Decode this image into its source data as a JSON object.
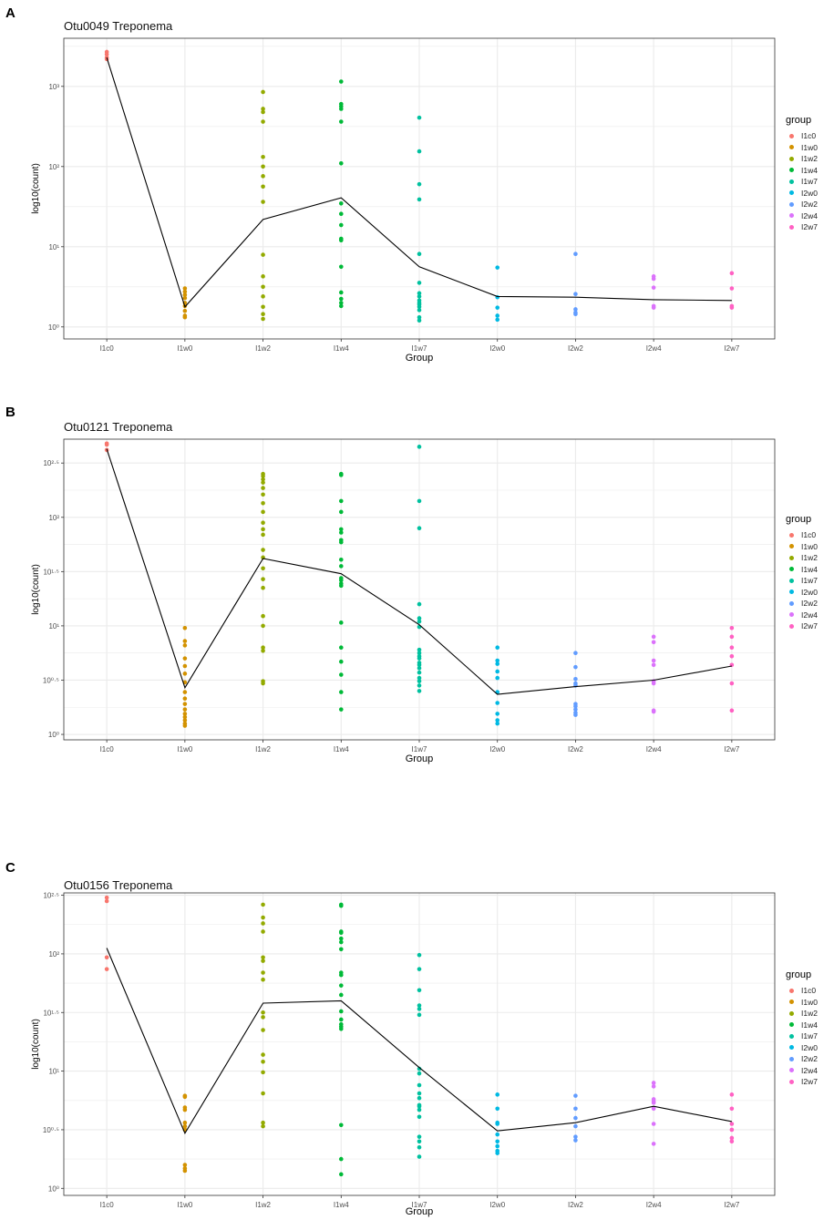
{
  "colors": {
    "I1c0": "#F8766D",
    "I1w0": "#D39200",
    "I1w2": "#93AA00",
    "I1w4": "#00BA38",
    "I1w7": "#00C19F",
    "I2w0": "#00B9E3",
    "I2w2": "#619CFF",
    "I2w4": "#DB72FB",
    "I2w7": "#FF61C3",
    "line": "#000000",
    "panel_bg": "#ffffff",
    "grid": "#ebebeb",
    "border": "#333333"
  },
  "legend": {
    "title": "group",
    "items": [
      "I1c0",
      "I1w0",
      "I1w2",
      "I1w4",
      "I1w7",
      "I2w0",
      "I2w2",
      "I2w4",
      "I2w7"
    ]
  },
  "panels": [
    {
      "letter": "A",
      "title": "Otu0049 Treponema"
    },
    {
      "letter": "B",
      "title": "Otu0121 Treponema"
    },
    {
      "letter": "C",
      "title": "Otu0156 Treponema"
    }
  ],
  "chart_data": [
    {
      "type": "scatter",
      "title": "Otu0049 Treponema",
      "xlabel": "Group",
      "ylabel": "log10(count)",
      "categories": [
        "I1c0",
        "I1w0",
        "I1w2",
        "I1w4",
        "I1w7",
        "I2w0",
        "I2w2",
        "I2w4",
        "I2w7"
      ],
      "y_log_range": [
        -0.15,
        3.6
      ],
      "yticks": [
        {
          "value": 0,
          "label": "10⁰"
        },
        {
          "value": 1,
          "label": "10¹"
        },
        {
          "value": 2,
          "label": "10²"
        },
        {
          "value": 3,
          "label": "10³"
        }
      ],
      "points": [
        [
          3.43,
          3.4,
          3.36,
          3.34
        ],
        [
          0.48,
          0.44,
          0.4,
          0.36,
          0.3,
          0.26,
          0.2,
          0.14,
          0.12
        ],
        [
          2.93,
          2.72,
          2.68,
          2.56,
          2.12,
          2.0,
          1.88,
          1.75,
          1.56,
          0.9,
          0.63,
          0.5,
          0.38,
          0.25,
          0.16,
          0.1
        ],
        [
          3.06,
          2.78,
          2.75,
          2.72,
          2.56,
          2.04,
          1.54,
          1.41,
          1.27,
          1.1,
          1.08,
          0.75,
          0.43,
          0.35,
          0.3,
          0.26
        ],
        [
          2.61,
          2.19,
          1.78,
          1.59,
          0.91,
          0.55,
          0.42,
          0.38,
          0.33,
          0.3,
          0.28,
          0.25,
          0.21,
          0.12,
          0.08
        ],
        [
          0.74,
          0.37,
          0.24,
          0.14,
          0.09
        ],
        [
          0.91,
          0.41,
          0.22,
          0.18,
          0.16
        ],
        [
          0.63,
          0.6,
          0.49,
          0.26,
          0.24
        ],
        [
          0.67,
          0.48,
          0.26,
          0.24
        ]
      ],
      "line": [
        3.36,
        0.25,
        1.34,
        1.61,
        0.75,
        0.38,
        0.37,
        0.34,
        0.33
      ]
    },
    {
      "type": "scatter",
      "title": "Otu0121 Treponema",
      "xlabel": "Group",
      "ylabel": "log10(count)",
      "categories": [
        "I1c0",
        "I1w0",
        "I1w2",
        "I1w4",
        "I1w7",
        "I2w0",
        "I2w2",
        "I2w4",
        "I2w7"
      ],
      "y_log_range": [
        -0.05,
        2.72
      ],
      "yticks": [
        {
          "value": 0,
          "label": "10⁰"
        },
        {
          "value": 0.5,
          "label": "10⁰·⁵"
        },
        {
          "value": 1,
          "label": "10¹"
        },
        {
          "value": 1.5,
          "label": "10¹·⁵"
        },
        {
          "value": 2,
          "label": "10²"
        },
        {
          "value": 2.5,
          "label": "10²·⁵"
        }
      ],
      "points": [
        [
          2.68,
          2.67,
          2.62
        ],
        [
          0.98,
          0.86,
          0.82,
          0.7,
          0.63,
          0.56,
          0.48,
          0.39,
          0.33,
          0.28,
          0.23,
          0.19,
          0.16,
          0.13,
          0.1,
          0.08
        ],
        [
          2.4,
          2.38,
          2.35,
          2.32,
          2.27,
          2.21,
          2.13,
          2.05,
          1.95,
          1.89,
          1.84,
          1.7,
          1.63,
          1.53,
          1.43,
          1.35,
          1.09,
          1.0,
          0.8,
          0.77,
          0.49,
          0.47
        ],
        [
          2.4,
          2.39,
          2.15,
          2.05,
          1.89,
          1.86,
          1.79,
          1.77,
          1.61,
          1.55,
          1.44,
          1.42,
          1.39,
          1.37,
          1.03,
          0.8,
          0.67,
          0.55,
          0.39,
          0.23
        ],
        [
          2.65,
          2.15,
          1.9,
          1.2,
          1.07,
          1.04,
          0.99,
          0.78,
          0.75,
          0.72,
          0.7,
          0.66,
          0.64,
          0.61,
          0.57,
          0.52,
          0.49,
          0.45,
          0.4
        ],
        [
          0.8,
          0.68,
          0.65,
          0.58,
          0.52,
          0.39,
          0.29,
          0.19,
          0.13,
          0.1
        ],
        [
          0.75,
          0.62,
          0.51,
          0.47,
          0.45,
          0.28,
          0.26,
          0.23,
          0.2,
          0.18
        ],
        [
          0.9,
          0.85,
          0.68,
          0.64,
          0.49,
          0.47,
          0.22,
          0.21
        ],
        [
          0.98,
          0.9,
          0.8,
          0.72,
          0.64,
          0.47,
          0.22
        ]
      ],
      "line": [
        2.63,
        0.43,
        1.62,
        1.48,
        1.01,
        0.37,
        0.44,
        0.5,
        0.63
      ]
    },
    {
      "type": "scatter",
      "title": "Otu0156 Treponema",
      "xlabel": "Group",
      "ylabel": "log10(count)",
      "categories": [
        "I1c0",
        "I1w0",
        "I1w2",
        "I1w4",
        "I1w7",
        "I2w0",
        "I2w2",
        "I2w4",
        "I2w7"
      ],
      "y_log_range": [
        -0.06,
        2.52
      ],
      "yticks": [
        {
          "value": 0,
          "label": "10⁰"
        },
        {
          "value": 0.5,
          "label": "10⁰·⁵"
        },
        {
          "value": 1,
          "label": "10¹"
        },
        {
          "value": 1.5,
          "label": "10¹·⁵"
        },
        {
          "value": 2,
          "label": "10²"
        },
        {
          "value": 2.5,
          "label": "10²·⁵"
        }
      ],
      "points": [
        [
          2.48,
          2.45,
          1.97,
          1.87
        ],
        [
          0.79,
          0.78,
          0.69,
          0.67,
          0.56,
          0.53,
          0.5,
          0.2,
          0.17,
          0.15
        ],
        [
          2.42,
          2.31,
          2.26,
          2.19,
          1.97,
          1.94,
          1.84,
          1.78,
          1.5,
          1.46,
          1.35,
          1.14,
          1.08,
          0.99,
          0.81,
          0.56,
          0.53
        ],
        [
          2.42,
          2.41,
          2.19,
          2.18,
          2.13,
          2.1,
          2.04,
          1.84,
          1.82,
          1.73,
          1.65,
          1.51,
          1.44,
          1.4,
          1.38,
          1.36,
          0.54,
          0.25,
          0.12
        ],
        [
          1.99,
          1.87,
          1.69,
          1.56,
          1.53,
          1.48,
          1.02,
          0.98,
          0.88,
          0.81,
          0.77,
          0.71,
          0.7,
          0.67,
          0.61,
          0.44,
          0.4,
          0.35,
          0.27
        ],
        [
          0.8,
          0.68,
          0.56,
          0.55,
          0.46,
          0.4,
          0.36,
          0.32,
          0.3
        ],
        [
          0.79,
          0.68,
          0.6,
          0.53,
          0.44,
          0.41
        ],
        [
          0.9,
          0.87,
          0.76,
          0.74,
          0.73,
          0.68,
          0.55,
          0.38
        ],
        [
          0.8,
          0.68,
          0.55,
          0.5,
          0.43,
          0.4
        ]
      ],
      "line": [
        2.05,
        0.47,
        1.58,
        1.6,
        1.03,
        0.49,
        0.56,
        0.7,
        0.57
      ]
    }
  ]
}
